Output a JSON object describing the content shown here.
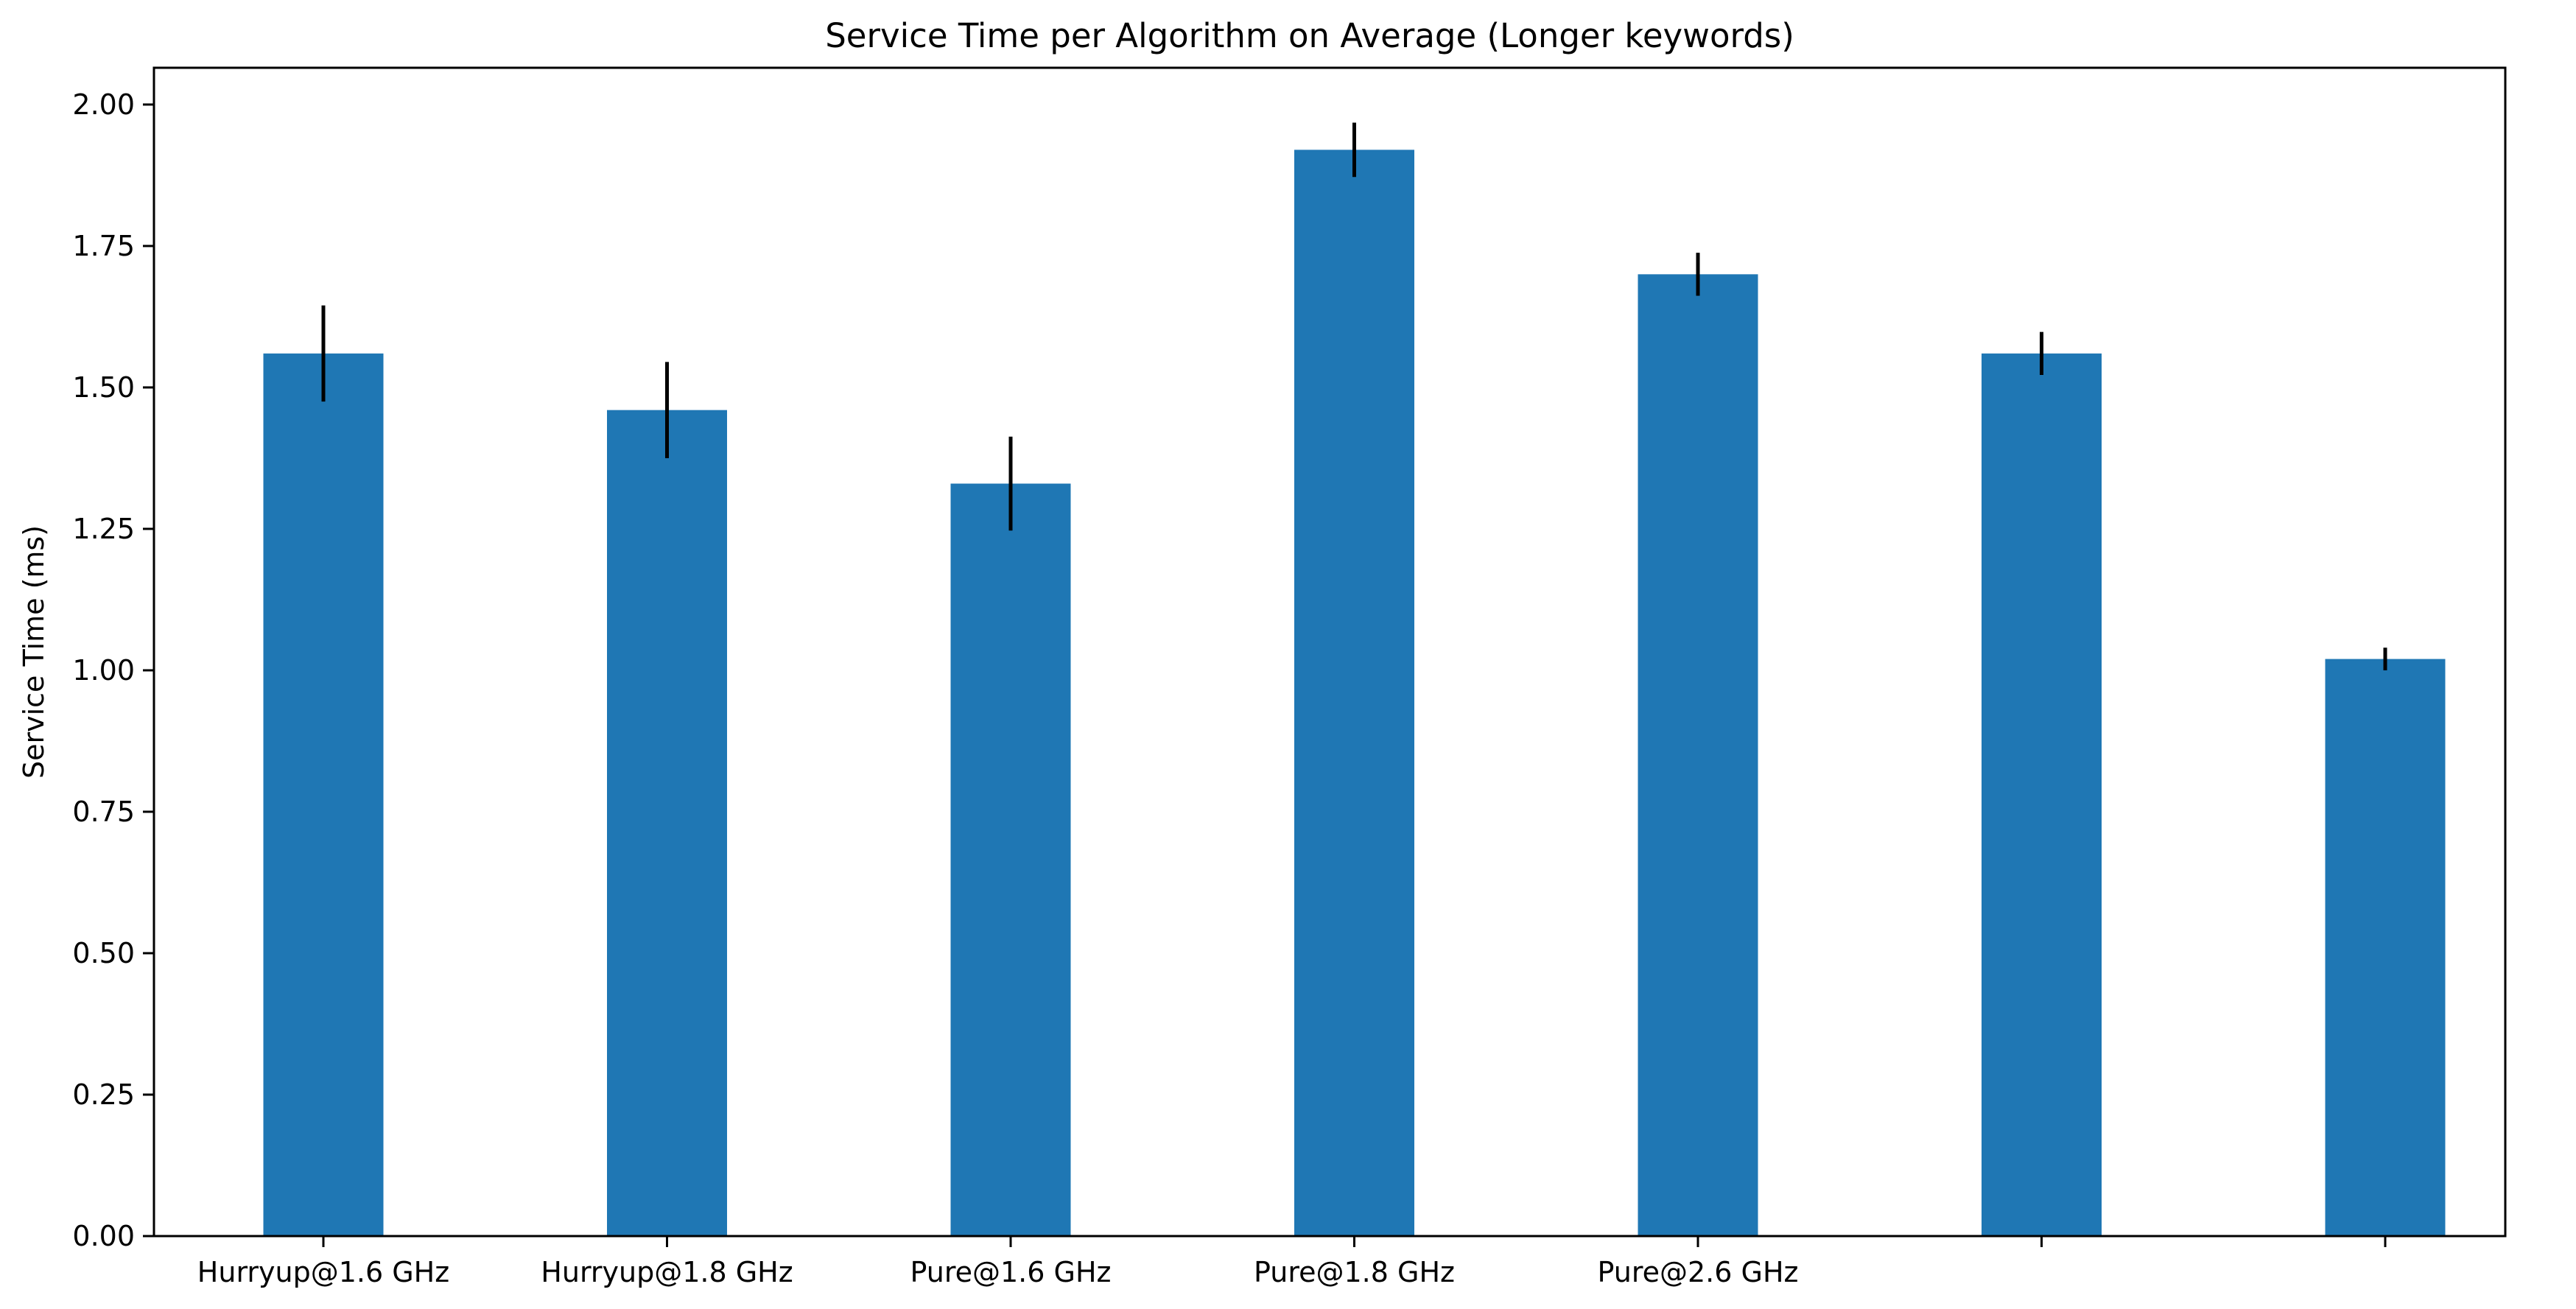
{
  "chart_data": {
    "type": "bar",
    "title": "Service Time per Algorithm on Average (Longer keywords)",
    "xlabel": "",
    "ylabel": "Service Time (ms)",
    "categories": [
      "Hurryup@1.6 GHz",
      "Hurryup@1.8 GHz",
      "Pure@1.6 GHz",
      "Pure@1.8 GHz",
      "Pure@2.6 GHz",
      "",
      ""
    ],
    "values": [
      1.56,
      1.46,
      1.33,
      1.92,
      1.7,
      1.56,
      1.02
    ],
    "errors": [
      0.085,
      0.085,
      0.083,
      0.048,
      0.038,
      0.038,
      0.02
    ],
    "ylim": [
      0,
      2.065
    ],
    "yticks": [
      "0.00",
      "0.25",
      "0.50",
      "0.75",
      "1.00",
      "1.25",
      "1.50",
      "1.75",
      "2.00"
    ],
    "grid": false,
    "legend": "none",
    "bar_color": "#1f77b4",
    "error_color": "#000000"
  }
}
